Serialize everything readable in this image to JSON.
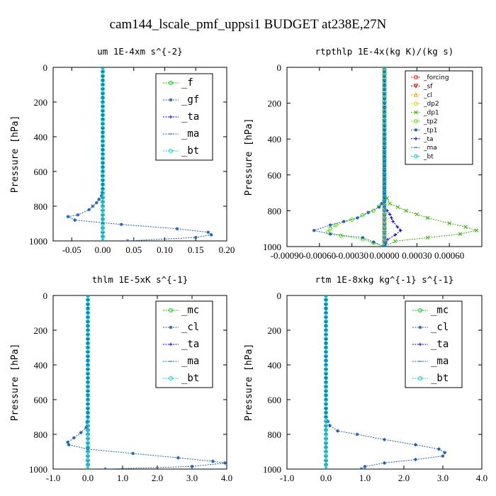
{
  "figure_title": "cam144_lscale_pmf_uppsi1  BUDGET at238E,27N",
  "chart_data": [
    {
      "type": "line",
      "title": "um  1E-4xm s^{-2}",
      "ylabel": "Pressure [hPa]",
      "xlim": [
        -0.08,
        0.2
      ],
      "ylim": [
        1000,
        0
      ],
      "xticks": [
        -0.05,
        0.0,
        0.05,
        0.1,
        0.15,
        0.2
      ],
      "xtick_labels": [
        "-0.05",
        "0.00",
        "0.05",
        "0.10",
        "0.15",
        "0.20"
      ],
      "yticks": [
        0,
        200,
        400,
        600,
        800,
        1000
      ],
      "ytick_labels": [
        "0",
        "200",
        "400",
        "600",
        "800",
        "1000"
      ],
      "legend_style": "big",
      "series": [
        {
          "name": "_f",
          "color": "#00c000",
          "marker": "o",
          "points": [
            [
              0.0,
              0
            ],
            [
              0.0,
              100
            ],
            [
              0.0,
              200
            ],
            [
              0.0,
              300
            ],
            [
              0.0,
              400
            ],
            [
              0.0,
              500
            ],
            [
              0.0,
              600
            ],
            [
              0.0,
              700
            ],
            [
              0.0,
              800
            ],
            [
              0.0,
              900
            ],
            [
              0.0,
              1000
            ]
          ]
        },
        {
          "name": "_gf",
          "color": "#1a5fb4",
          "marker": "*",
          "points": [
            [
              0.0,
              0
            ],
            [
              0.0,
              300
            ],
            [
              0.0,
              600
            ],
            [
              0.0,
              700
            ],
            [
              -0.002,
              740
            ],
            [
              -0.01,
              780
            ],
            [
              -0.022,
              820
            ],
            [
              -0.04,
              850
            ],
            [
              -0.056,
              860
            ],
            [
              -0.045,
              880
            ],
            [
              0.03,
              905
            ],
            [
              0.12,
              930
            ],
            [
              0.17,
              950
            ],
            [
              0.175,
              965
            ],
            [
              0.15,
              980
            ],
            [
              0.04,
              1000
            ]
          ]
        },
        {
          "name": "_ta",
          "color": "#0000cc",
          "marker": "+",
          "points": [
            [
              0.0,
              0
            ],
            [
              0.0,
              1000
            ]
          ]
        },
        {
          "name": "_ma",
          "color": "#1c71d8",
          "marker": "-",
          "points": [
            [
              0.0,
              0
            ],
            [
              0.0,
              1000
            ]
          ]
        },
        {
          "name": "_bt",
          "color": "#00c8c8",
          "marker": "o",
          "points": [
            [
              0.0,
              0
            ],
            [
              0.0,
              1000
            ]
          ]
        }
      ]
    },
    {
      "type": "line",
      "title": "rtpthlp  1E-4x(kg K)/(kg s)",
      "ylabel": "Pressure [hPa]",
      "xlim": [
        -0.0009,
        0.0009
      ],
      "ylim": [
        1000,
        0
      ],
      "xticks": [
        -0.0009,
        -0.0006,
        -0.0003,
        0.0,
        0.0003,
        0.0006
      ],
      "xtick_labels": [
        "-0.00090",
        "-0.00060",
        "-0.00030",
        "0.00000",
        "0.00030",
        "0.00060"
      ],
      "yticks": [
        0,
        200,
        400,
        600,
        800,
        1000
      ],
      "ytick_labels": [
        "0",
        "200",
        "400",
        "600",
        "800",
        "1000"
      ],
      "legend_style": "small",
      "series": [
        {
          "name": "_forcing",
          "color": "#ff0000",
          "marker": "o",
          "points": [
            [
              0.0,
              0
            ],
            [
              0.0,
              1000
            ]
          ]
        },
        {
          "name": "_sf",
          "color": "#cc0000",
          "marker": "v",
          "points": [
            [
              0.0,
              0
            ],
            [
              0.0,
              1000
            ]
          ]
        },
        {
          "name": "_cl",
          "color": "#ffa500",
          "marker": "^",
          "points": [
            [
              0.0,
              0
            ],
            [
              0.0,
              1000
            ]
          ]
        },
        {
          "name": "_dp2",
          "color": "#e6c800",
          "marker": "o",
          "points": [
            [
              0.0,
              0
            ],
            [
              0.0,
              1000
            ]
          ]
        },
        {
          "name": "_dp1",
          "color": "#33b200",
          "marker": "x",
          "points": [
            [
              0.0,
              0
            ],
            [
              0.0,
              700
            ],
            [
              5e-05,
              760
            ],
            [
              0.0002,
              800
            ],
            [
              0.0004,
              840
            ],
            [
              0.0006,
              870
            ],
            [
              0.00075,
              890
            ],
            [
              0.00085,
              910
            ],
            [
              0.0007,
              930
            ],
            [
              0.0004,
              950
            ],
            [
              0.0001,
              970
            ],
            [
              0.0,
              1000
            ]
          ]
        },
        {
          "name": "_tp2",
          "color": "#55e000",
          "marker": "o",
          "points": [
            [
              0.0,
              0
            ],
            [
              0.0,
              750
            ],
            [
              -0.0001,
              800
            ],
            [
              -0.0003,
              850
            ],
            [
              -0.00045,
              880
            ],
            [
              -0.0005,
              900
            ],
            [
              -0.00052,
              920
            ],
            [
              -0.0004,
              940
            ],
            [
              -0.0002,
              960
            ],
            [
              0.0,
              1000
            ]
          ]
        },
        {
          "name": "_tp1",
          "color": "#1a5fb4",
          "marker": "*",
          "points": [
            [
              0.0,
              0
            ],
            [
              0.0,
              740
            ],
            [
              -5e-05,
              780
            ],
            [
              -0.00025,
              840
            ],
            [
              -0.0005,
              880
            ],
            [
              -0.00065,
              910
            ],
            [
              -0.0005,
              930
            ],
            [
              -0.0002,
              950
            ],
            [
              0.0,
              1000
            ]
          ]
        },
        {
          "name": "_ta",
          "color": "#0000cc",
          "marker": "+",
          "points": [
            [
              0.0,
              0
            ],
            [
              0.0,
              780
            ],
            [
              5e-05,
              820
            ],
            [
              8e-05,
              860
            ],
            [
              0.00012,
              890
            ],
            [
              0.00015,
              910
            ],
            [
              0.0001,
              935
            ],
            [
              3e-05,
              960
            ],
            [
              0.0,
              1000
            ]
          ]
        },
        {
          "name": "_ma",
          "color": "#1c71d8",
          "marker": "-",
          "points": [
            [
              0.0,
              0
            ],
            [
              0.0,
              1000
            ]
          ]
        },
        {
          "name": "_bt",
          "color": "#00c8c8",
          "marker": "o",
          "points": [
            [
              0.0,
              0
            ],
            [
              0.0,
              1000
            ]
          ]
        }
      ]
    },
    {
      "type": "line",
      "title": "thlm  1E-5xK s^{-1}",
      "ylabel": "Pressure [hPa]",
      "xlim": [
        -1.0,
        4.0
      ],
      "ylim": [
        1000,
        0
      ],
      "xticks": [
        -1.0,
        0.0,
        1.0,
        2.0,
        3.0,
        4.0
      ],
      "xtick_labels": [
        "-1.0",
        "0.0",
        "1.0",
        "2.0",
        "3.0",
        "4.0"
      ],
      "yticks": [
        0,
        200,
        400,
        600,
        800,
        1000
      ],
      "ytick_labels": [
        "0",
        "200",
        "400",
        "600",
        "800",
        "1000"
      ],
      "legend_style": "big",
      "series": [
        {
          "name": "_mc",
          "color": "#00c000",
          "marker": "o",
          "points": [
            [
              0.0,
              0
            ],
            [
              0.0,
              100
            ],
            [
              0.0,
              200
            ],
            [
              0.0,
              300
            ],
            [
              0.0,
              400
            ],
            [
              0.0,
              500
            ],
            [
              0.0,
              600
            ],
            [
              0.0,
              700
            ],
            [
              0.0,
              800
            ],
            [
              0.0,
              900
            ],
            [
              0.0,
              1000
            ]
          ]
        },
        {
          "name": "_cl",
          "color": "#1a5fb4",
          "marker": "*",
          "points": [
            [
              0.0,
              0
            ],
            [
              0.0,
              600
            ],
            [
              0.0,
              700
            ],
            [
              -0.05,
              760
            ],
            [
              -0.2,
              790
            ],
            [
              -0.4,
              820
            ],
            [
              -0.58,
              845
            ],
            [
              -0.55,
              860
            ],
            [
              0.0,
              885
            ],
            [
              1.3,
              910
            ],
            [
              2.6,
              935
            ],
            [
              3.6,
              955
            ],
            [
              3.95,
              965
            ],
            [
              3.0,
              985
            ],
            [
              0.5,
              1000
            ]
          ]
        },
        {
          "name": "_ta",
          "color": "#0000cc",
          "marker": "+",
          "points": [
            [
              0.0,
              0
            ],
            [
              0.0,
              1000
            ]
          ]
        },
        {
          "name": "_ma",
          "color": "#1c71d8",
          "marker": "-",
          "points": [
            [
              0.0,
              0
            ],
            [
              0.0,
              1000
            ]
          ]
        },
        {
          "name": "_bt",
          "color": "#00c8c8",
          "marker": "o",
          "points": [
            [
              0.0,
              0
            ],
            [
              0.0,
              1000
            ]
          ]
        }
      ]
    },
    {
      "type": "line",
      "title": "rtm  1E-8xkg kg^{-1} s^{-1}",
      "ylabel": "Pressure [hPa]",
      "xlim": [
        -1.0,
        4.0
      ],
      "ylim": [
        1000,
        0
      ],
      "xticks": [
        -1.0,
        0.0,
        1.0,
        2.0,
        3.0,
        4.0
      ],
      "xtick_labels": [
        "-1.0",
        "0.0",
        "1.0",
        "2.0",
        "3.0",
        "4.0"
      ],
      "yticks": [
        0,
        200,
        400,
        600,
        800,
        1000
      ],
      "ytick_labels": [
        "0",
        "200",
        "400",
        "600",
        "800",
        "1000"
      ],
      "legend_style": "big",
      "series": [
        {
          "name": "_mc",
          "color": "#00c000",
          "marker": "o",
          "points": [
            [
              0.0,
              0
            ],
            [
              0.0,
              100
            ],
            [
              0.0,
              200
            ],
            [
              0.0,
              300
            ],
            [
              0.0,
              400
            ],
            [
              0.0,
              500
            ],
            [
              0.0,
              600
            ],
            [
              0.0,
              700
            ],
            [
              0.0,
              800
            ],
            [
              0.0,
              900
            ],
            [
              0.0,
              1000
            ]
          ]
        },
        {
          "name": "_cl",
          "color": "#1a5fb4",
          "marker": "*",
          "points": [
            [
              0.0,
              0
            ],
            [
              0.0,
              700
            ],
            [
              0.1,
              750
            ],
            [
              0.3,
              780
            ],
            [
              0.8,
              800
            ],
            [
              1.5,
              830
            ],
            [
              2.3,
              860
            ],
            [
              2.9,
              885
            ],
            [
              3.05,
              905
            ],
            [
              3.0,
              925
            ],
            [
              2.3,
              945
            ],
            [
              1.5,
              965
            ],
            [
              1.0,
              985
            ],
            [
              0.9,
              1000
            ]
          ]
        },
        {
          "name": "_ta",
          "color": "#0000cc",
          "marker": "+",
          "points": [
            [
              0.0,
              0
            ],
            [
              0.0,
              1000
            ]
          ]
        },
        {
          "name": "_ma",
          "color": "#1c71d8",
          "marker": "-",
          "points": [
            [
              0.0,
              0
            ],
            [
              0.0,
              1000
            ]
          ]
        },
        {
          "name": "_bt",
          "color": "#00c8c8",
          "marker": "o",
          "points": [
            [
              0.0,
              0
            ],
            [
              0.0,
              1000
            ]
          ]
        }
      ]
    }
  ]
}
